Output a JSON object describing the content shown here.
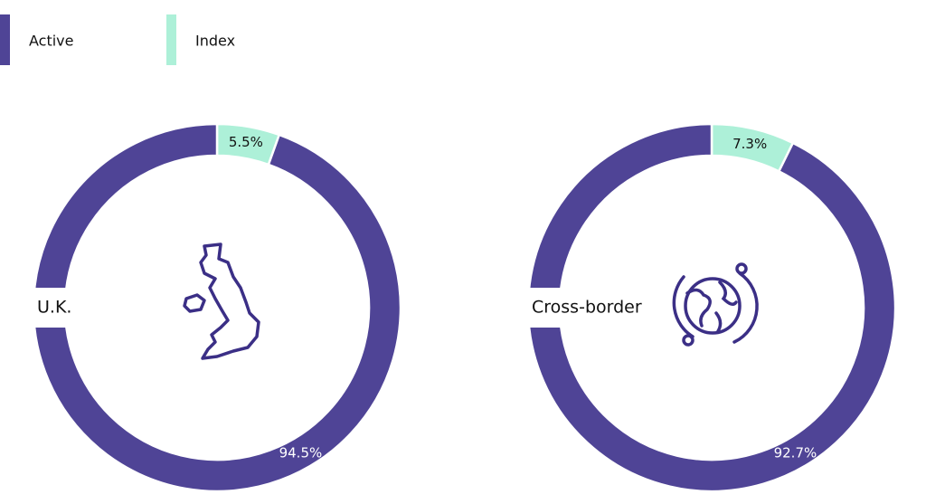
{
  "legend": {
    "labels": [
      "Active",
      "Index"
    ],
    "colors": [
      "#4f4496",
      "#adf0d8"
    ]
  },
  "chart_data": [
    {
      "type": "pie",
      "title": "U.K.",
      "values": [
        94.5,
        5.5
      ],
      "value_labels": [
        "94.5%",
        "5.5%"
      ]
    },
    {
      "type": "pie",
      "title": "Cross-border",
      "values": [
        92.7,
        7.3
      ],
      "value_labels": [
        "92.7%",
        "7.3%"
      ]
    }
  ]
}
